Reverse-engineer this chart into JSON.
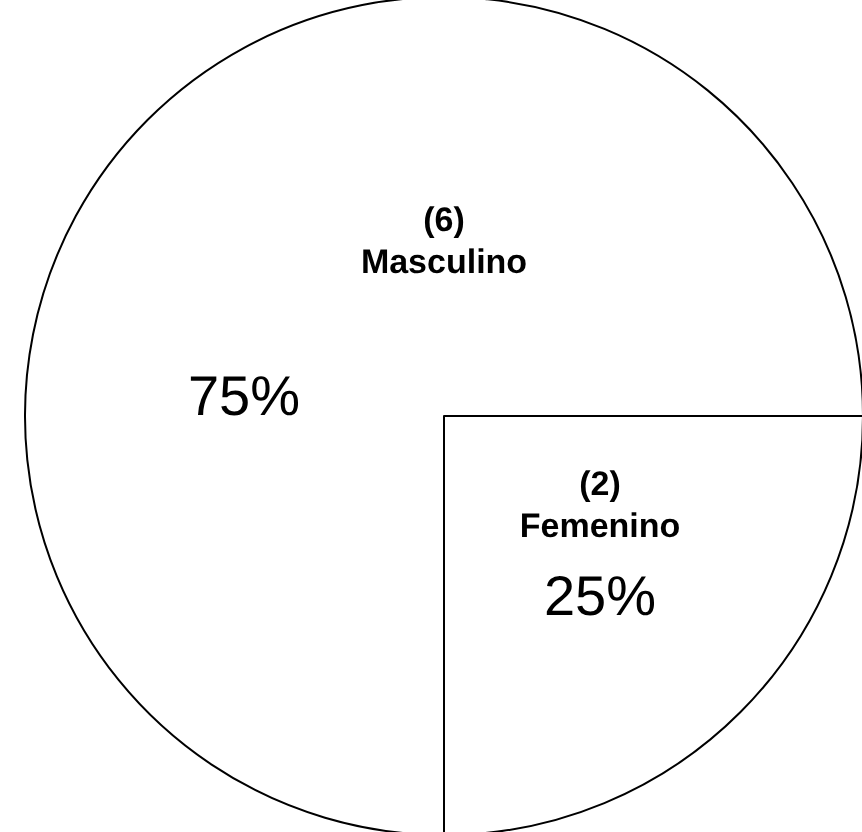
{
  "chart_data": {
    "type": "pie",
    "categories": [
      "Masculino",
      "Femenino"
    ],
    "values": [
      6,
      2
    ],
    "colors": [
      "#ffffff",
      "#ffffff"
    ],
    "value_labels": [
      "(6)",
      "(2)"
    ],
    "annotations": [
      "75%",
      "25%"
    ]
  }
}
